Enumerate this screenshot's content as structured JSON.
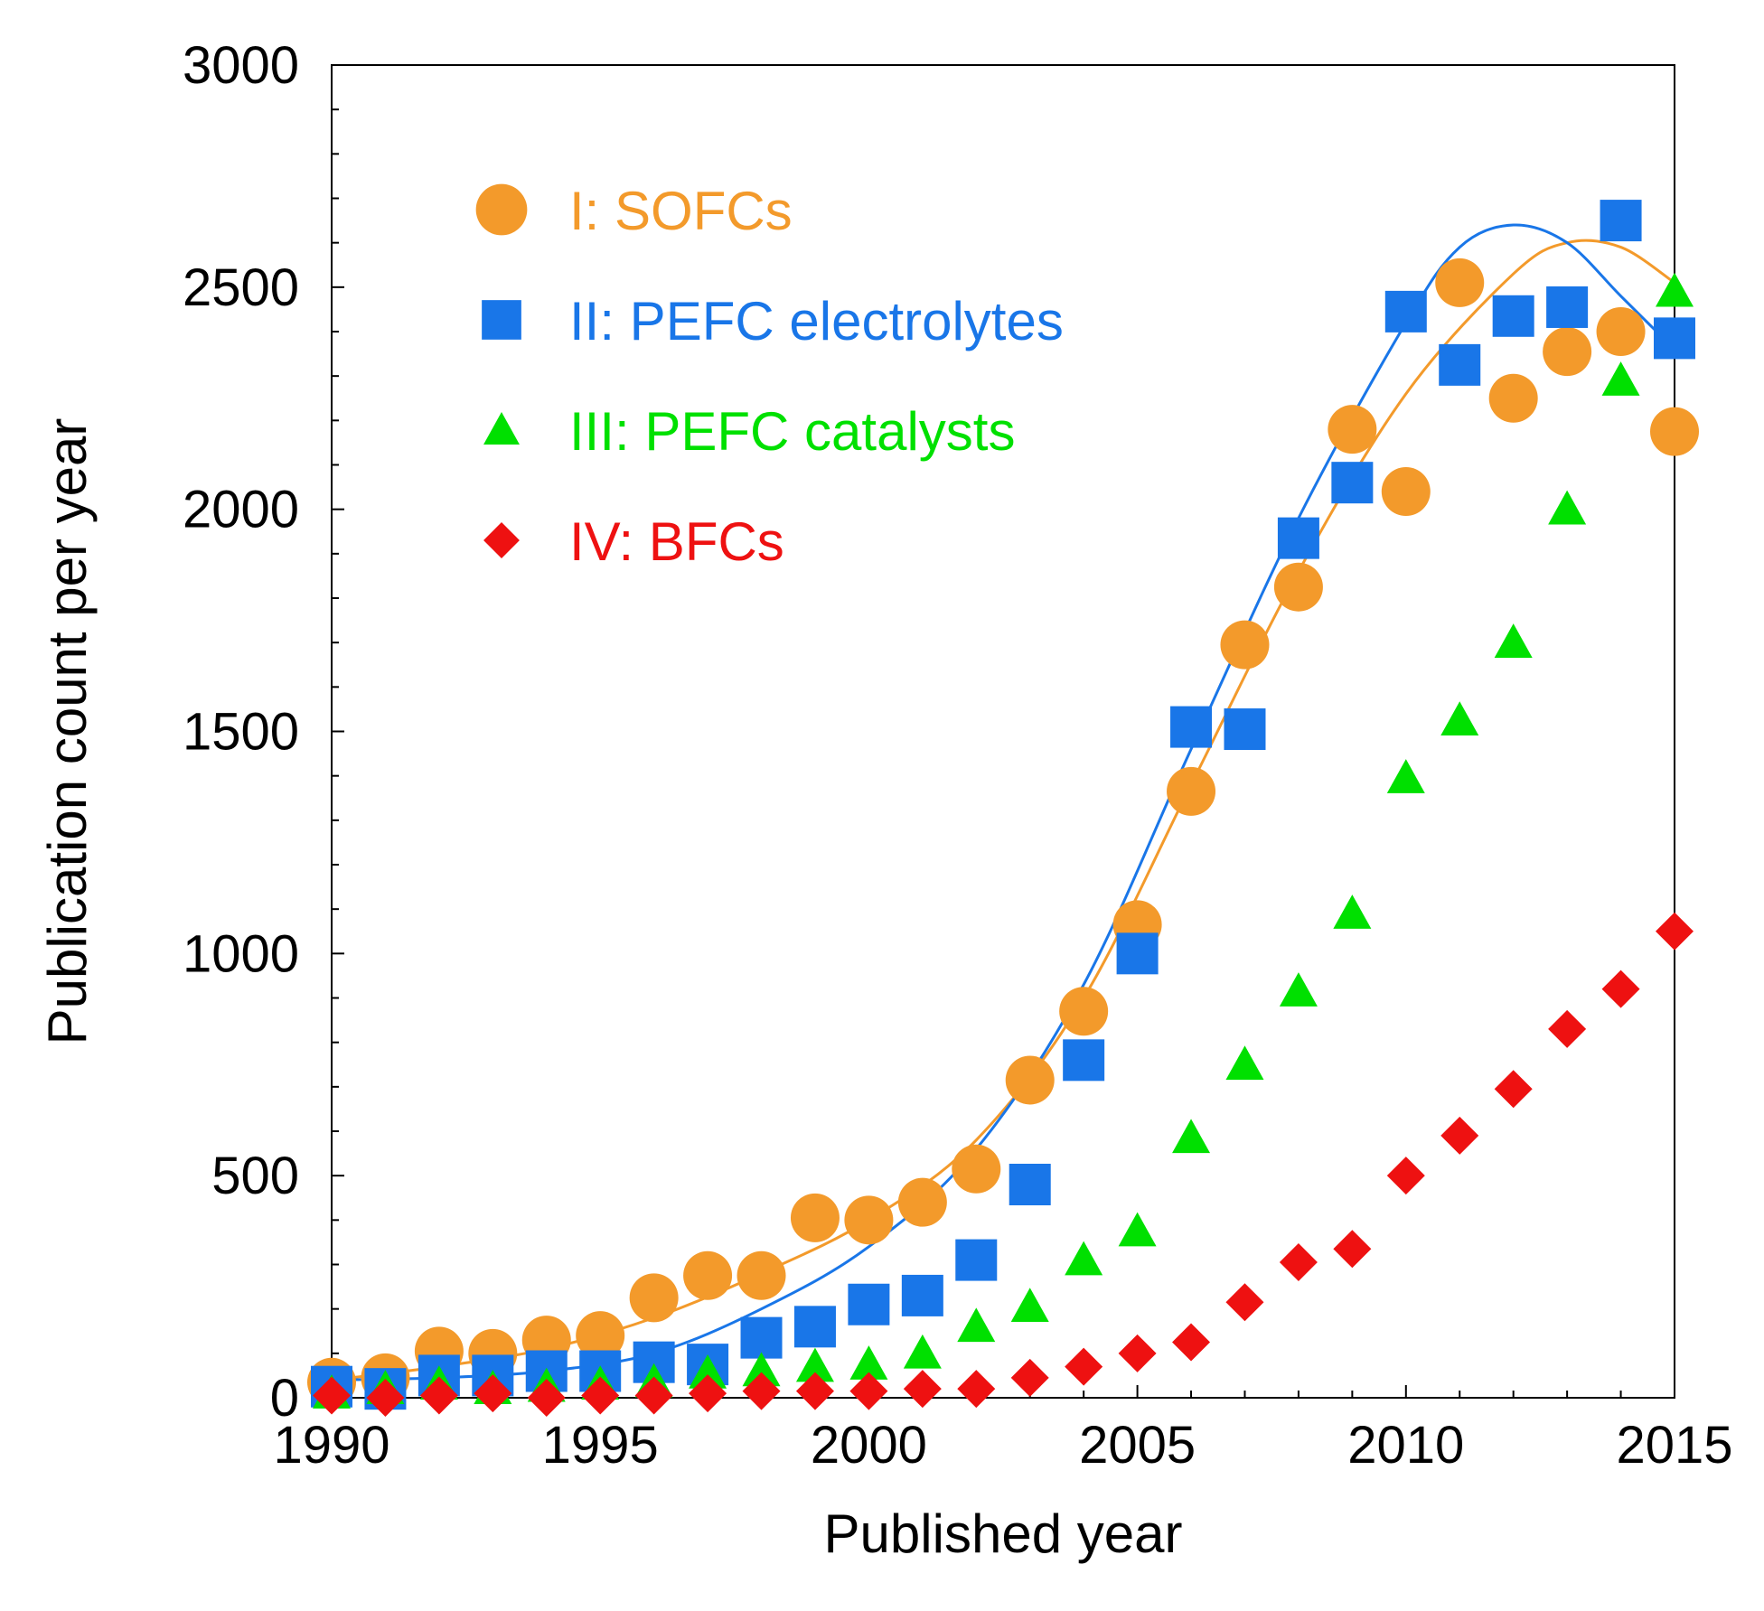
{
  "chart_data": {
    "type": "scatter",
    "title": "",
    "xlabel": "Published year",
    "ylabel": "Publication count per year",
    "xlim": [
      1990,
      2015
    ],
    "ylim": [
      0,
      3000
    ],
    "xticks": [
      1990,
      1995,
      2000,
      2005,
      2010,
      2015
    ],
    "yticks": [
      0,
      500,
      1000,
      1500,
      2000,
      2500,
      3000
    ],
    "xtick_labels": [
      "1990",
      "1995",
      "2000",
      "2005",
      "2010",
      "2015"
    ],
    "ytick_labels": [
      "0",
      "500",
      "1000",
      "1500",
      "2000",
      "2500",
      "3000"
    ],
    "grid": false,
    "legend_position": "top-left",
    "series": [
      {
        "name": "I: SOFCs",
        "marker": "circle",
        "color": "#F39A2B",
        "x": [
          1990,
          1991,
          1992,
          1993,
          1994,
          1995,
          1996,
          1997,
          1998,
          1999,
          2000,
          2001,
          2002,
          2003,
          2004,
          2005,
          2006,
          2007,
          2008,
          2009,
          2010,
          2011,
          2012,
          2013,
          2014,
          2015
        ],
        "values": [
          35,
          45,
          105,
          100,
          130,
          140,
          225,
          275,
          275,
          405,
          400,
          440,
          515,
          715,
          870,
          1065,
          1365,
          1695,
          1825,
          2180,
          2040,
          2510,
          2250,
          2355,
          2400,
          2175
        ],
        "fit": {
          "x": [
            1990,
            1992,
            1994,
            1996,
            1998,
            2000,
            2002,
            2004,
            2006,
            2008,
            2010,
            2012,
            2013,
            2014,
            2015
          ],
          "values": [
            40,
            70,
            110,
            180,
            280,
            400,
            580,
            900,
            1380,
            1860,
            2260,
            2530,
            2600,
            2590,
            2510
          ]
        }
      },
      {
        "name": "II: PEFC electrolytes",
        "marker": "square",
        "color": "#1976E8",
        "x": [
          1990,
          1991,
          1992,
          1993,
          1994,
          1995,
          1996,
          1997,
          1998,
          1999,
          2000,
          2001,
          2002,
          2003,
          2004,
          2005,
          2006,
          2007,
          2008,
          2009,
          2010,
          2011,
          2012,
          2013,
          2014,
          2015
        ],
        "values": [
          25,
          20,
          50,
          50,
          60,
          60,
          80,
          75,
          135,
          160,
          210,
          230,
          310,
          480,
          760,
          1000,
          1510,
          1505,
          1935,
          2060,
          2445,
          2325,
          2435,
          2455,
          2650,
          2385
        ],
        "fit": {
          "x": [
            1990,
            1992,
            1994,
            1996,
            1998,
            2000,
            2002,
            2004,
            2006,
            2008,
            2010,
            2011,
            2012,
            2013,
            2014,
            2015
          ],
          "values": [
            40,
            45,
            60,
            100,
            200,
            340,
            560,
            930,
            1460,
            1980,
            2420,
            2590,
            2640,
            2600,
            2480,
            2360
          ]
        }
      },
      {
        "name": "III: PEFC catalysts",
        "marker": "triangle",
        "color": "#00E000",
        "x": [
          1990,
          1991,
          1992,
          1993,
          1994,
          1995,
          1996,
          1997,
          1998,
          1999,
          2000,
          2001,
          2002,
          2003,
          2004,
          2005,
          2006,
          2007,
          2008,
          2009,
          2010,
          2011,
          2012,
          2013,
          2014,
          2015
        ],
        "values": [
          10,
          20,
          30,
          20,
          25,
          30,
          35,
          55,
          60,
          70,
          75,
          100,
          160,
          205,
          310,
          375,
          585,
          750,
          915,
          1090,
          1395,
          1525,
          1700,
          2000,
          2290,
          2490
        ]
      },
      {
        "name": "IV: BFCs",
        "marker": "diamond",
        "color": "#EE1111",
        "x": [
          1990,
          1991,
          1992,
          1993,
          1994,
          1995,
          1996,
          1997,
          1998,
          1999,
          2000,
          2001,
          2002,
          2003,
          2004,
          2005,
          2006,
          2007,
          2008,
          2009,
          2010,
          2011,
          2012,
          2013,
          2014,
          2015
        ],
        "values": [
          5,
          0,
          5,
          10,
          0,
          5,
          5,
          10,
          15,
          15,
          15,
          20,
          20,
          45,
          70,
          100,
          125,
          215,
          305,
          335,
          500,
          590,
          695,
          830,
          920,
          1050
        ]
      }
    ]
  }
}
